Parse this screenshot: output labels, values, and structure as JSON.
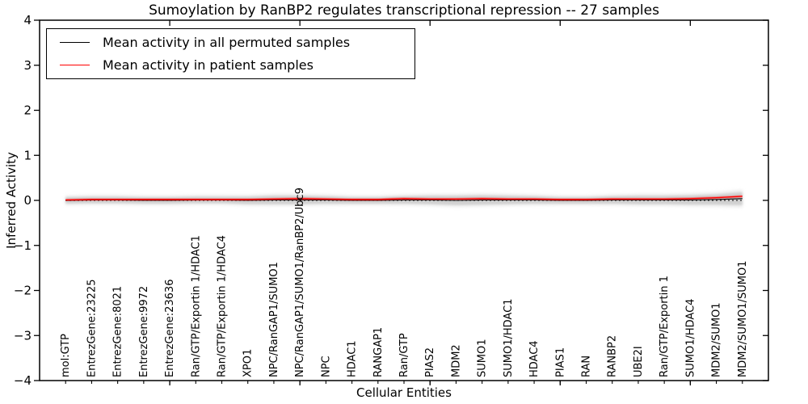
{
  "chart_data": {
    "type": "line",
    "title": "Sumoylation by RanBP2 regulates transcriptional repression -- 27 samples",
    "xlabel": "Cellular Entities",
    "ylabel": "Inferred Activity",
    "ylim": [
      -4,
      4
    ],
    "yticks": [
      4,
      3,
      2,
      1,
      0,
      -1,
      -2,
      -3,
      -4
    ],
    "ytick_labels": [
      "4",
      "3",
      "2",
      "1",
      "0",
      "−1",
      "−2",
      "−3",
      "−4"
    ],
    "xticks_major": [
      5,
      10,
      15,
      20,
      25
    ],
    "grid": false,
    "zero_line": {
      "value": 0,
      "style": "dotted",
      "color": "#000000"
    },
    "categories": [
      "mol:GTP",
      "EntrezGene:23225",
      "EntrezGene:8021",
      "EntrezGene:9972",
      "EntrezGene:23636",
      "Ran/GTP/Exportin 1/HDAC1",
      "Ran/GTP/Exportin 1/HDAC4",
      "XPO1",
      "NPC/RanGAP1/SUMO1",
      "NPC/RanGAP1/SUMO1/RanBP2/Ubc9",
      "NPC",
      "HDAC1",
      "RANGAP1",
      "Ran/GTP",
      "PIAS2",
      "MDM2",
      "SUMO1",
      "SUMO1/HDAC1",
      "HDAC4",
      "PIAS1",
      "RAN",
      "RANBP2",
      "UBE2I",
      "Ran/GTP/Exportin 1",
      "SUMO1/HDAC4",
      "MDM2/SUMO1",
      "MDM2/SUMO1/SUMO1"
    ],
    "series": [
      {
        "name": "Mean activity in all permuted samples",
        "color": "#000000",
        "values": [
          0.0,
          0.01,
          0.01,
          0.0,
          0.0,
          0.01,
          0.01,
          0.0,
          0.01,
          0.01,
          0.01,
          0.0,
          0.0,
          0.01,
          0.01,
          0.0,
          0.01,
          0.01,
          0.01,
          0.0,
          0.0,
          0.01,
          0.01,
          0.01,
          0.01,
          0.02,
          0.04
        ]
      },
      {
        "name": "Mean activity in patient samples",
        "color": "#ff0000",
        "values": [
          0.01,
          0.02,
          0.02,
          0.02,
          0.02,
          0.02,
          0.02,
          0.02,
          0.03,
          0.04,
          0.03,
          0.02,
          0.02,
          0.04,
          0.03,
          0.03,
          0.04,
          0.03,
          0.03,
          0.02,
          0.02,
          0.03,
          0.03,
          0.03,
          0.04,
          0.06,
          0.09
        ]
      }
    ],
    "band": {
      "around_series": "Mean activity in all permuted samples",
      "halfwidths": [
        0.07,
        0.07,
        0.07,
        0.07,
        0.07,
        0.07,
        0.07,
        0.08,
        0.09,
        0.09,
        0.08,
        0.07,
        0.07,
        0.08,
        0.09,
        0.1,
        0.1,
        0.09,
        0.08,
        0.07,
        0.07,
        0.08,
        0.09,
        0.09,
        0.1,
        0.11,
        0.14
      ],
      "color": "#c9c9c9"
    },
    "legend": {
      "position": "upper left",
      "entries": [
        {
          "label": "Mean activity in all permuted samples",
          "color": "#000000"
        },
        {
          "label": "Mean activity in patient samples",
          "color": "#ff0000"
        }
      ]
    }
  }
}
